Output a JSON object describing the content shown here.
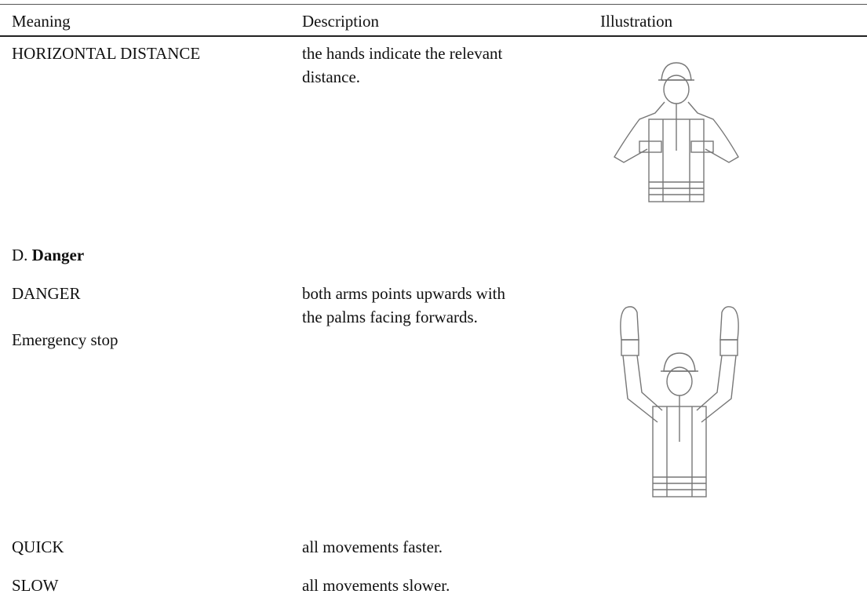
{
  "table": {
    "headers": [
      "Meaning",
      "Description",
      "Illustration"
    ],
    "rows": [
      {
        "meaning": [
          "HORIZONTAL DISTANCE"
        ],
        "description": [
          "the hands indicate the relevant",
          "distance."
        ]
      },
      {
        "section": {
          "label": "D.",
          "title": "Danger"
        }
      },
      {
        "meaning": [
          "DANGER",
          "Emergency stop"
        ],
        "description": [
          "both arms points upwards with",
          "the palms facing forwards."
        ]
      },
      {
        "meaning": [
          "QUICK"
        ],
        "description": [
          "all movements faster."
        ]
      },
      {
        "meaning": [
          "SLOW"
        ],
        "description": [
          "all movements slower."
        ]
      }
    ]
  }
}
